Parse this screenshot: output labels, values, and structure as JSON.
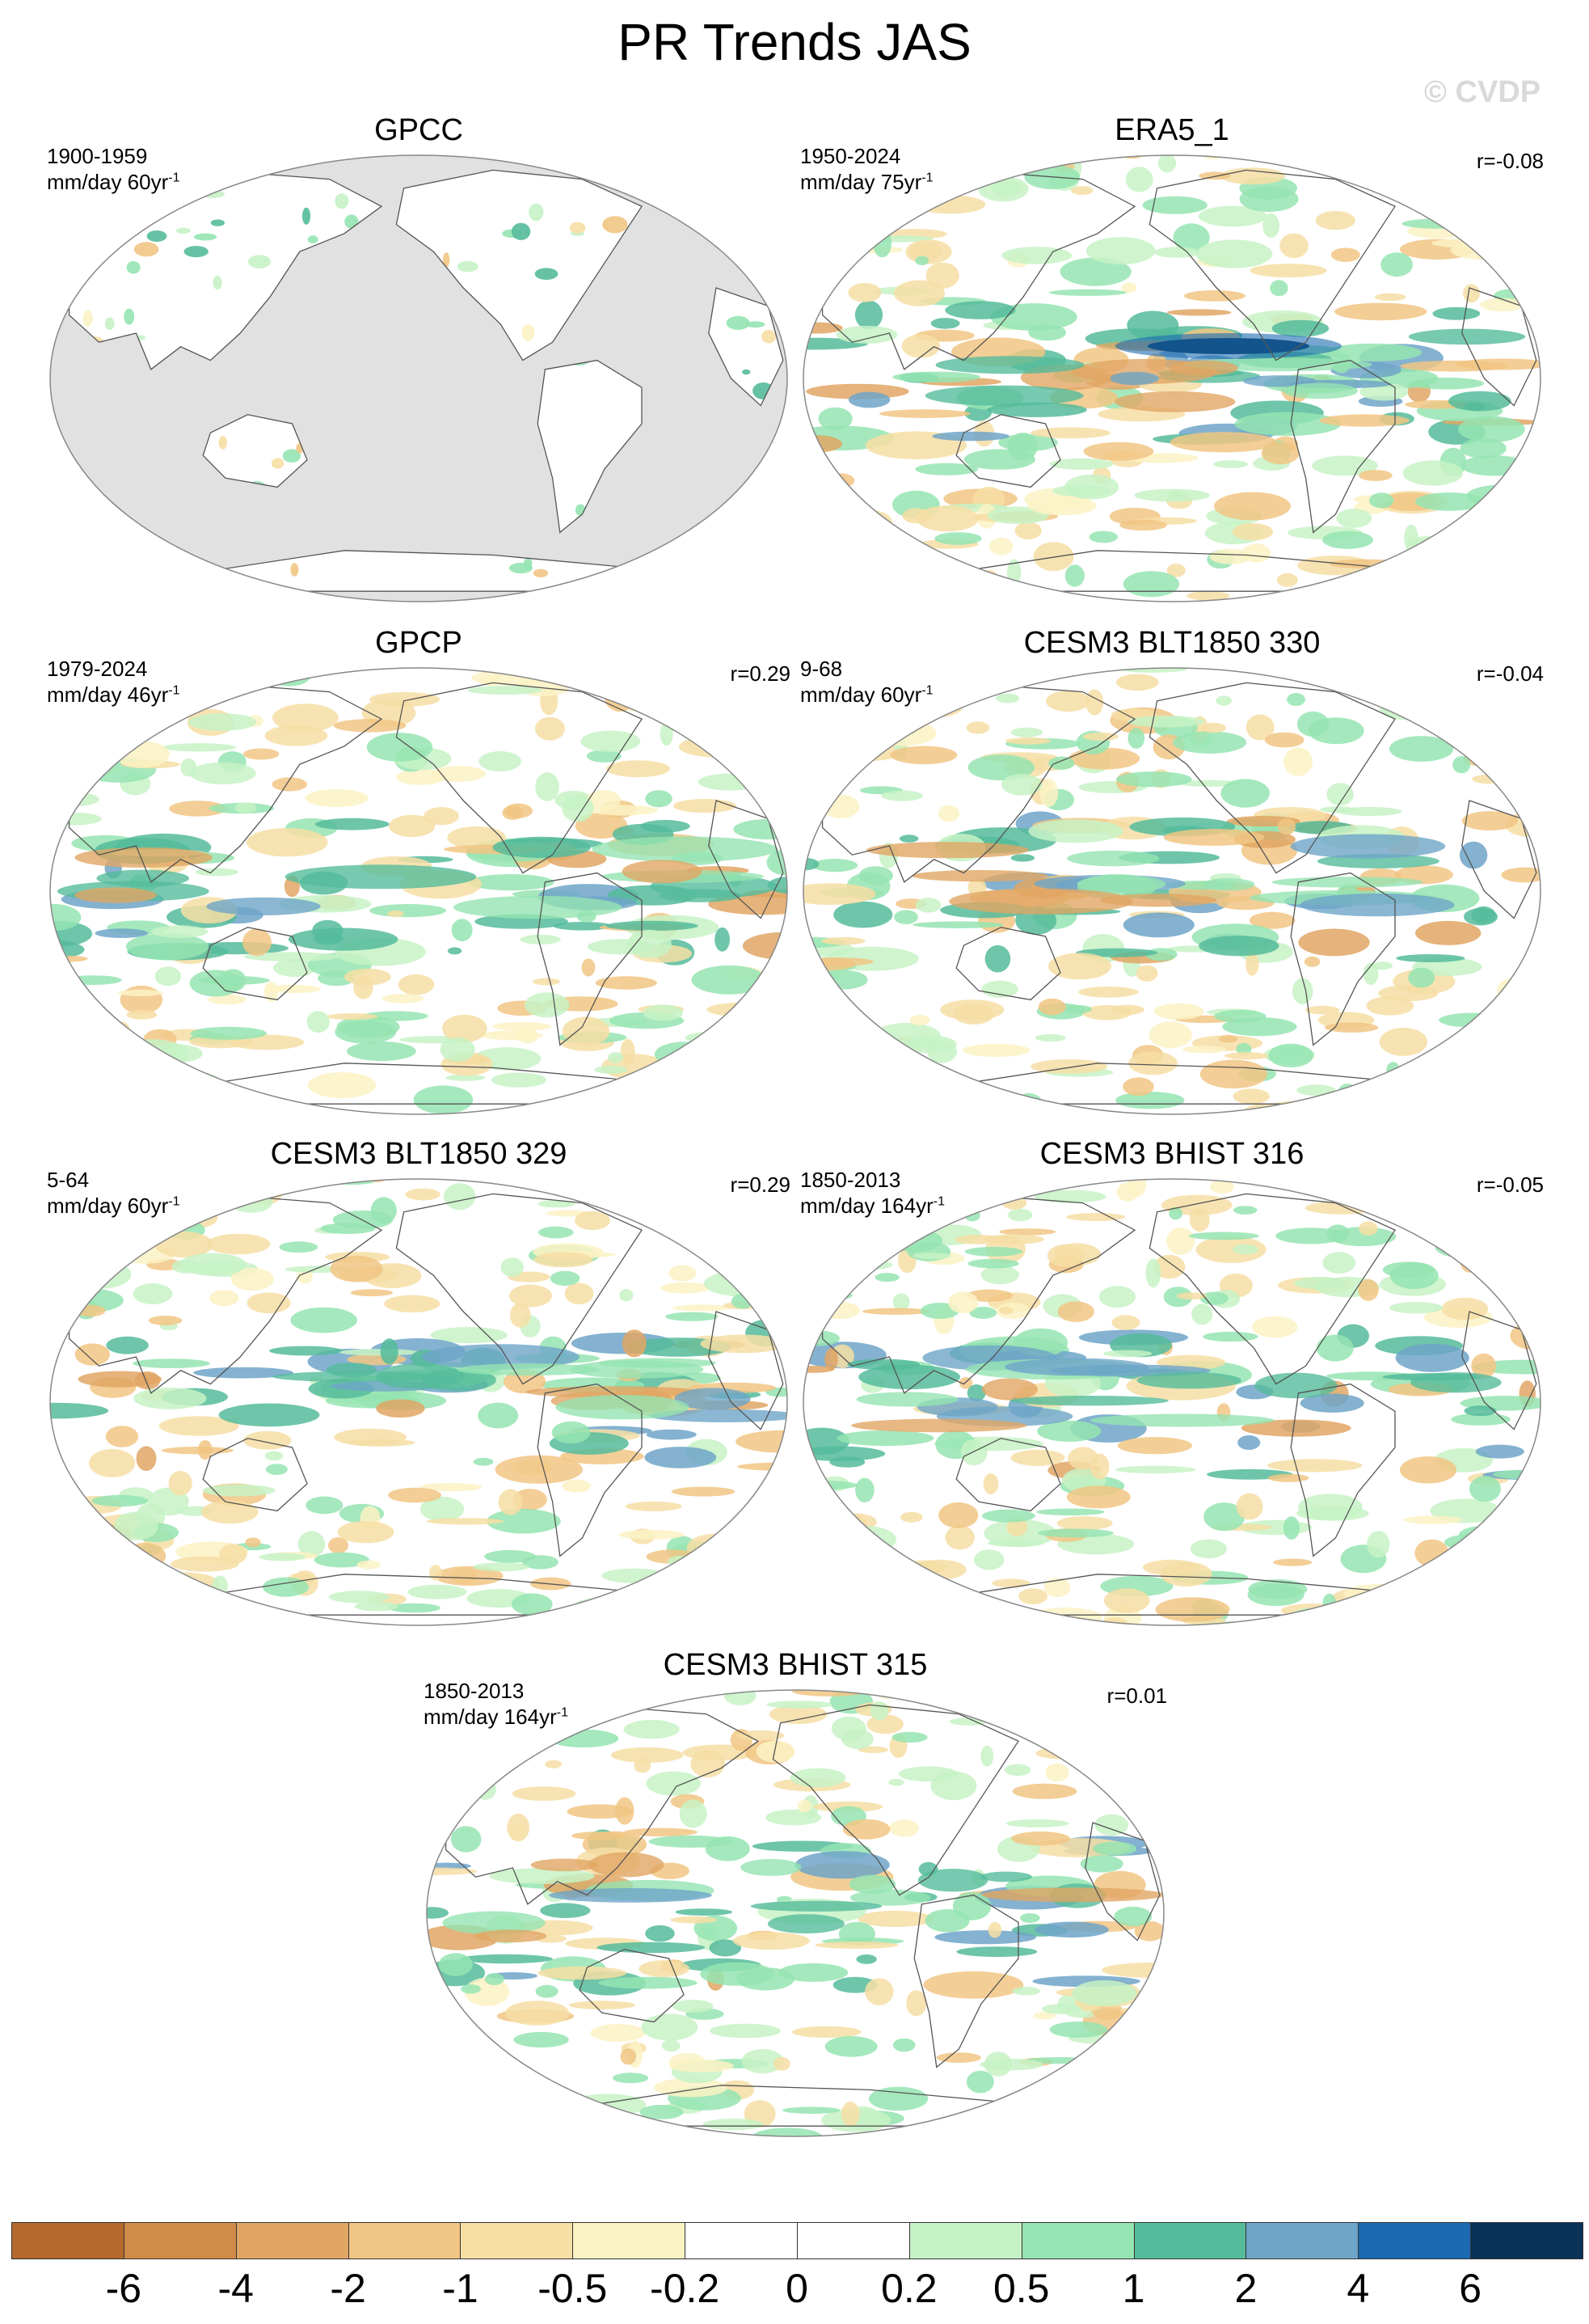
{
  "title": "PR Trends JAS",
  "watermark": "© CVDP",
  "colors": {
    "ocean_masked": "#e1e1e1",
    "land_outline": "#555555",
    "colorbar": [
      "#b5692d",
      "#cf8b47",
      "#e1a664",
      "#f1c584",
      "#f6dea4",
      "#fbf2c4",
      "#ffffff",
      "#ffffff",
      "#c7f2c6",
      "#95e4b2",
      "#55bb9b",
      "#6ea5c8",
      "#1b6ab0",
      "#093359"
    ]
  },
  "panels": [
    {
      "title": "GPCC",
      "period": "1900-1959",
      "units_prefix": "mm/day 60yr",
      "units_exp": "-1",
      "corr": "",
      "ocean_masked": true,
      "icon": "world-map-gpcc"
    },
    {
      "title": "ERA5_1",
      "period": "1950-2024",
      "units_prefix": "mm/day 75yr",
      "units_exp": "-1",
      "corr": "r=-0.08",
      "ocean_masked": false,
      "icon": "world-map-era5"
    },
    {
      "title": "GPCP",
      "period": "1979-2024",
      "units_prefix": "mm/day 46yr",
      "units_exp": "-1",
      "corr": "r=0.29",
      "ocean_masked": false,
      "icon": "world-map-gpcp"
    },
    {
      "title": "CESM3 BLT1850 330",
      "period": "9-68",
      "units_prefix": "mm/day 60yr",
      "units_exp": "-1",
      "corr": "r=-0.04",
      "ocean_masked": false,
      "icon": "world-map-blt1850-330"
    },
    {
      "title": "CESM3 BLT1850 329",
      "period": "5-64",
      "units_prefix": "mm/day 60yr",
      "units_exp": "-1",
      "corr": "r=0.29",
      "ocean_masked": false,
      "icon": "world-map-blt1850-329"
    },
    {
      "title": "CESM3 BHIST 316",
      "period": "1850-2013",
      "units_prefix": "mm/day 164yr",
      "units_exp": "-1",
      "corr": "r=-0.05",
      "ocean_masked": false,
      "icon": "world-map-bhist-316"
    },
    {
      "title": "CESM3 BHIST 315",
      "period": "1850-2013",
      "units_prefix": "mm/day 164yr",
      "units_exp": "-1",
      "corr": "r=0.01",
      "ocean_masked": false,
      "icon": "world-map-bhist-315"
    }
  ],
  "colorbar": {
    "labels": [
      "-6",
      "-4",
      "-2",
      "-1",
      "-0.5",
      "-0.2",
      "0",
      "0.2",
      "0.5",
      "1",
      "2",
      "4",
      "6"
    ]
  }
}
